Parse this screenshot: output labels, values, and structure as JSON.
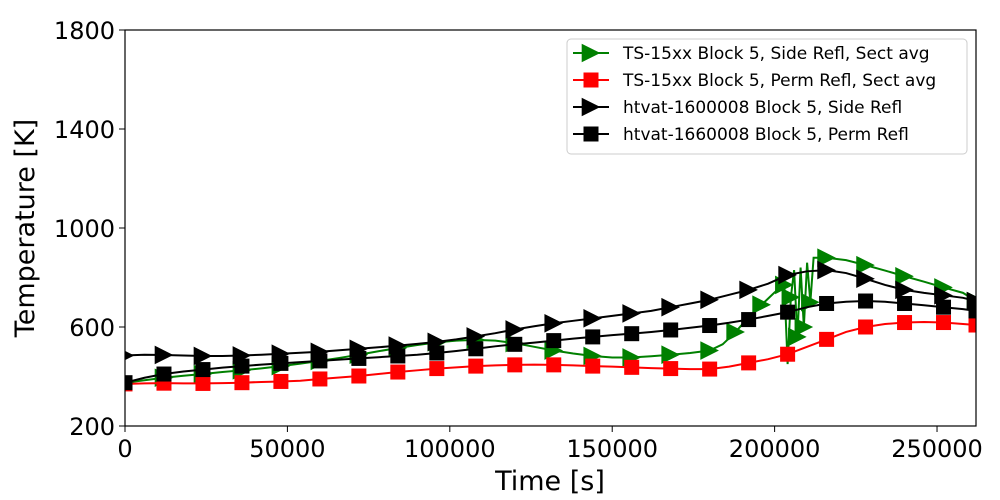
{
  "chart_data": {
    "type": "line",
    "xlabel": "Time [s]",
    "ylabel": "Temperature [K]",
    "xlim": [
      0,
      262000
    ],
    "ylim": [
      200,
      1800
    ],
    "xticks": [
      0,
      50000,
      100000,
      150000,
      200000,
      250000
    ],
    "yticks": [
      200,
      600,
      1000,
      1400,
      1800
    ],
    "grid": false,
    "legend_position": "top-right",
    "series": [
      {
        "name": "TS-15xx Block 5, Side Refl, Sect avg",
        "color": "#008000",
        "marker": "triangle-right",
        "x": [
          0,
          6000,
          12000,
          18000,
          24000,
          30000,
          36000,
          42000,
          48000,
          54000,
          60000,
          66000,
          72000,
          78000,
          84000,
          90000,
          96000,
          102000,
          108000,
          114000,
          120000,
          126000,
          132000,
          138000,
          144000,
          150000,
          156000,
          162000,
          168000,
          174000,
          180000,
          184000,
          188000,
          192000,
          196000,
          200000,
          203000,
          204000,
          205000,
          206000,
          207000,
          208000,
          209000,
          210000,
          211000,
          212000,
          216000,
          222000,
          228000,
          234000,
          240000,
          246000,
          252000,
          258000,
          262000
        ],
        "y": [
          375,
          385,
          395,
          403,
          410,
          418,
          425,
          433,
          442,
          452,
          463,
          475,
          488,
          502,
          515,
          527,
          538,
          545,
          548,
          545,
          535,
          520,
          505,
          493,
          483,
          477,
          477,
          482,
          488,
          495,
          505,
          530,
          580,
          640,
          690,
          740,
          770,
          450,
          720,
          830,
          560,
          840,
          600,
          860,
          700,
          880,
          880,
          870,
          850,
          828,
          805,
          783,
          760,
          738,
          705
        ]
      },
      {
        "name": "TS-15xx Block 5, Perm Refl, Sect avg",
        "color": "#ff0000",
        "marker": "square",
        "x": [
          0,
          6000,
          12000,
          18000,
          24000,
          30000,
          36000,
          42000,
          48000,
          54000,
          60000,
          66000,
          72000,
          78000,
          84000,
          90000,
          96000,
          102000,
          108000,
          114000,
          120000,
          126000,
          132000,
          138000,
          144000,
          150000,
          156000,
          162000,
          168000,
          174000,
          180000,
          186000,
          192000,
          198000,
          204000,
          210000,
          216000,
          222000,
          228000,
          234000,
          240000,
          246000,
          252000,
          258000,
          262000
        ],
        "y": [
          370,
          372,
          373,
          372,
          372,
          373,
          375,
          378,
          380,
          383,
          390,
          396,
          402,
          410,
          418,
          425,
          432,
          437,
          442,
          445,
          447,
          448,
          447,
          445,
          442,
          440,
          437,
          434,
          432,
          430,
          430,
          440,
          455,
          470,
          490,
          520,
          550,
          580,
          600,
          612,
          618,
          620,
          618,
          612,
          608
        ]
      },
      {
        "name": "htvat-1600008 Block 5, Side Refl",
        "color": "#000000",
        "marker": "triangle-right",
        "x": [
          0,
          6000,
          12000,
          18000,
          24000,
          30000,
          36000,
          42000,
          48000,
          54000,
          60000,
          66000,
          72000,
          78000,
          84000,
          90000,
          96000,
          102000,
          108000,
          114000,
          120000,
          126000,
          132000,
          138000,
          144000,
          150000,
          156000,
          162000,
          168000,
          174000,
          180000,
          186000,
          192000,
          198000,
          204000,
          210000,
          216000,
          222000,
          228000,
          234000,
          240000,
          246000,
          252000,
          258000,
          262000
        ],
        "y": [
          485,
          488,
          487,
          485,
          483,
          483,
          485,
          488,
          492,
          496,
          500,
          506,
          512,
          518,
          525,
          532,
          540,
          550,
          562,
          575,
          590,
          603,
          615,
          625,
          635,
          645,
          655,
          665,
          680,
          695,
          710,
          730,
          750,
          775,
          810,
          825,
          830,
          818,
          795,
          770,
          750,
          738,
          728,
          718,
          705
        ]
      },
      {
        "name": "htvat-1660008 Block 5, Perm Refl",
        "color": "#000000",
        "marker": "square",
        "x": [
          0,
          6000,
          12000,
          18000,
          24000,
          30000,
          36000,
          42000,
          48000,
          54000,
          60000,
          66000,
          72000,
          78000,
          84000,
          90000,
          96000,
          102000,
          108000,
          114000,
          120000,
          126000,
          132000,
          138000,
          144000,
          150000,
          156000,
          162000,
          168000,
          174000,
          180000,
          186000,
          192000,
          198000,
          204000,
          210000,
          216000,
          222000,
          228000,
          234000,
          240000,
          246000,
          252000,
          258000,
          262000
        ],
        "y": [
          375,
          395,
          410,
          420,
          428,
          436,
          442,
          448,
          453,
          458,
          463,
          468,
          473,
          478,
          483,
          488,
          495,
          503,
          512,
          522,
          530,
          537,
          545,
          553,
          560,
          567,
          573,
          580,
          588,
          597,
          606,
          617,
          630,
          645,
          660,
          680,
          695,
          702,
          705,
          702,
          695,
          688,
          680,
          672,
          665
        ]
      }
    ]
  }
}
